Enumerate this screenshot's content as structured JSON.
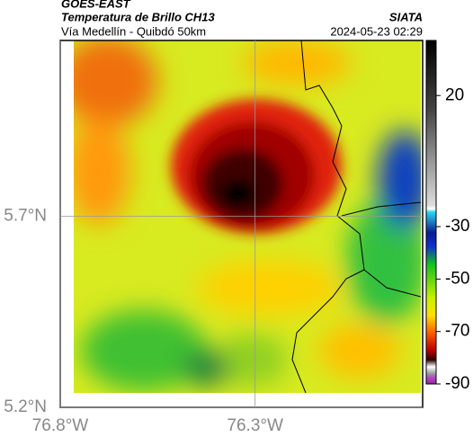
{
  "header": {
    "title": "GOES-EAST",
    "subtitle": "Temperatura de Brillo CH13",
    "region": "Vía Medellín - Quibdó 50km",
    "source": "SIATA",
    "datetime": "2024-05-23 02:29"
  },
  "map": {
    "xlim": [
      -76.8,
      -75.87
    ],
    "ylim": [
      5.2,
      6.16
    ],
    "xticks": [
      {
        "value": -76.8,
        "label": "76.8°W"
      },
      {
        "value": -76.3,
        "label": "76.3°W"
      }
    ],
    "yticks": [
      {
        "value": 5.2,
        "label": "5.2°N"
      },
      {
        "value": 5.7,
        "label": "5.7°N"
      }
    ]
  },
  "colorbar": {
    "lim": [
      -90,
      41
    ],
    "ticks": [
      20,
      -30,
      -50,
      -70,
      -90
    ]
  }
}
